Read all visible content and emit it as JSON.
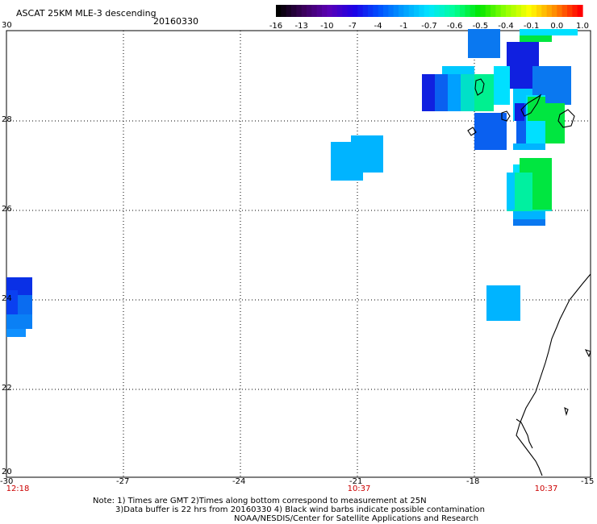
{
  "header": {
    "title": "ASCAT 25KM MLE-3 descending",
    "date": "20160330"
  },
  "colorbar": {
    "labels": [
      "-16",
      "-13",
      "-10",
      "-7",
      "-4",
      "-1",
      "-0.7",
      "-0.6",
      "-0.5",
      "-0.4",
      "-0.1",
      "0.0",
      "1.0"
    ],
    "colors": [
      "#000000",
      "#3a005a",
      "#5a00b4",
      "#1e00e6",
      "#0050ff",
      "#00a0ff",
      "#00e6ff",
      "#00ff96",
      "#00e600",
      "#8cff00",
      "#ffff00",
      "#ff8c00",
      "#ff0000"
    ]
  },
  "axes": {
    "lat_labels": [
      "30",
      "28",
      "26",
      "24",
      "22",
      "20"
    ],
    "lon_labels": [
      "-30",
      "-27",
      "-24",
      "-21",
      "-18",
      "-15"
    ],
    "time_labels": [
      "12:18",
      "10:37",
      "10:37"
    ]
  },
  "notes": {
    "line1": "Note: 1) Times are GMT 2)Times along bottom correspond to measurement at 25N",
    "line2": "3)Data buffer is 22 hrs from 20160330 4) Black wind barbs indicate possible contamination",
    "line3": "NOAA/NESDIS/Center for Satellite Applications and Research"
  },
  "map_data": {
    "region": {
      "lon": [
        -30,
        -15
      ],
      "lat": [
        20,
        30
      ]
    },
    "cells": [
      {
        "lon": -29.9,
        "lat": 24.2,
        "value": "-10",
        "color": "#0a2ce0"
      },
      {
        "lon": -20.9,
        "lat": 27.1,
        "value": "-1",
        "color": "#00b4ff"
      },
      {
        "lon": -17.6,
        "lat": 23.9,
        "value": "-1",
        "color": "#00b4ff"
      },
      {
        "lon": -17.8,
        "lat": 29.7,
        "value": "-4",
        "color": "#0a78f0"
      },
      {
        "lon": -16.5,
        "lat": 29.3,
        "value": "-10",
        "color": "#1020e0"
      },
      {
        "lon": -16.5,
        "lat": 26.3,
        "value": "-0.5",
        "color": "#00e640"
      },
      {
        "lon": -17.8,
        "lat": 27.7,
        "value": "-4",
        "color": "#0a60f0"
      }
    ]
  }
}
